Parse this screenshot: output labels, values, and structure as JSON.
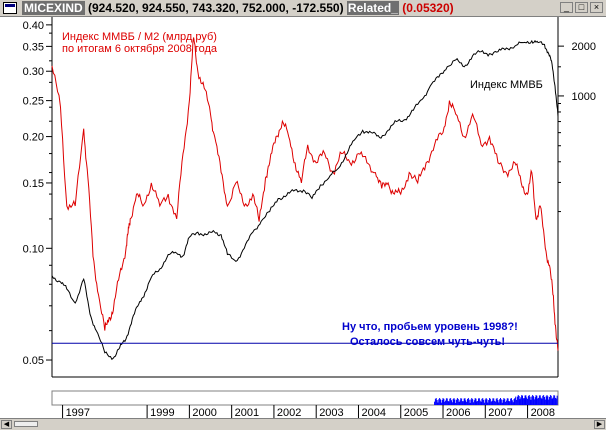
{
  "window": {
    "symbol": "MICEXIND",
    "ohlc": "(924.520, 924.550, 743.320, 752.000, -172.550)",
    "related_label": "Related_",
    "related_value": "(0.05320)"
  },
  "colors": {
    "ratio": "#dd0000",
    "index": "#000000",
    "annotation": "#0000cc",
    "support": "#0000aa",
    "volume": "#0000ff"
  },
  "chart_data": {
    "type": "line",
    "xlabel": "",
    "ylabel": "",
    "x_range": [
      1996.75,
      2008.72
    ],
    "x_tick_labels": [
      "1997",
      "1999",
      "2000",
      "2001",
      "2002",
      "2003",
      "2004",
      "2005",
      "2006",
      "2007",
      "2008"
    ],
    "left_axis": {
      "scale": "log",
      "range": [
        0.045,
        0.42
      ],
      "tick_labels": [
        "0.40",
        "0.35",
        "0.30",
        "0.25",
        "0.20",
        "0.15",
        "0.10",
        "0.05"
      ]
    },
    "right_axis": {
      "scale": "log",
      "range": [
        20,
        3000
      ],
      "tick_labels": [
        "2000",
        "1000"
      ]
    },
    "support_level": 0.0555,
    "series": [
      {
        "name": "Индекс ММВБ / М2 (млрд.руб)",
        "axis": "left",
        "x": [
          1996.75,
          1996.95,
          1997.1,
          1997.3,
          1997.5,
          1997.6,
          1997.72,
          1997.85,
          1998.0,
          1998.1,
          1998.2,
          1998.35,
          1998.5,
          1998.55,
          1998.6,
          1998.75,
          1998.9,
          1999.1,
          1999.3,
          1999.5,
          1999.7,
          1999.85,
          2000.0,
          2000.1,
          2000.2,
          2000.35,
          2000.5,
          2000.6,
          2000.75,
          2000.9,
          2001.1,
          2001.3,
          2001.5,
          2001.65,
          2001.8,
          2001.9,
          2002.05,
          2002.2,
          2002.35,
          2002.5,
          2002.65,
          2002.8,
          2003.0,
          2003.2,
          2003.4,
          2003.6,
          2003.8,
          2004.0,
          2004.2,
          2004.4,
          2004.55,
          2004.7,
          2004.85,
          2005.0,
          2005.2,
          2005.4,
          2005.6,
          2005.8,
          2006.0,
          2006.15,
          2006.3,
          2006.5,
          2006.7,
          2006.9,
          2007.1,
          2007.3,
          2007.5,
          2007.7,
          2007.85,
          2008.0,
          2008.1,
          2008.2,
          2008.3,
          2008.42,
          2008.52,
          2008.6,
          2008.66,
          2008.72
        ],
        "y": [
          0.31,
          0.24,
          0.13,
          0.13,
          0.21,
          0.155,
          0.095,
          0.075,
          0.06,
          0.065,
          0.068,
          0.085,
          0.1,
          0.11,
          0.12,
          0.14,
          0.13,
          0.15,
          0.13,
          0.14,
          0.12,
          0.18,
          0.25,
          0.37,
          0.3,
          0.27,
          0.23,
          0.2,
          0.16,
          0.13,
          0.15,
          0.13,
          0.14,
          0.118,
          0.155,
          0.17,
          0.2,
          0.22,
          0.2,
          0.17,
          0.15,
          0.19,
          0.17,
          0.18,
          0.16,
          0.18,
          0.17,
          0.18,
          0.17,
          0.16,
          0.145,
          0.15,
          0.14,
          0.14,
          0.16,
          0.15,
          0.17,
          0.19,
          0.205,
          0.25,
          0.23,
          0.2,
          0.23,
          0.19,
          0.2,
          0.17,
          0.16,
          0.17,
          0.15,
          0.14,
          0.16,
          0.12,
          0.13,
          0.1,
          0.09,
          0.075,
          0.062,
          0.053
        ]
      },
      {
        "name": "Индекс ММВБ",
        "axis": "right",
        "x": [
          1996.75,
          1996.95,
          1997.1,
          1997.3,
          1997.5,
          1997.65,
          1997.8,
          1998.0,
          1998.2,
          1998.35,
          1998.5,
          1998.65,
          1998.8,
          1998.95,
          1999.1,
          1999.3,
          1999.5,
          1999.7,
          1999.85,
          2000.0,
          2000.2,
          2000.4,
          2000.6,
          2000.75,
          2000.9,
          2001.1,
          2001.3,
          2001.5,
          2001.7,
          2001.9,
          2002.1,
          2002.3,
          2002.5,
          2002.7,
          2002.9,
          2003.1,
          2003.3,
          2003.5,
          2003.7,
          2003.9,
          2004.1,
          2004.3,
          2004.5,
          2004.7,
          2004.9,
          2005.1,
          2005.3,
          2005.5,
          2005.7,
          2005.9,
          2006.1,
          2006.3,
          2006.5,
          2006.7,
          2006.9,
          2007.1,
          2007.3,
          2007.5,
          2007.7,
          2007.9,
          2008.1,
          2008.25,
          2008.4,
          2008.5,
          2008.58,
          2008.65,
          2008.72
        ],
        "y": [
          82,
          75,
          68,
          56,
          78,
          48,
          38,
          28,
          26,
          30,
          34,
          45,
          55,
          65,
          80,
          90,
          110,
          112,
          108,
          140,
          150,
          145,
          150,
          145,
          110,
          100,
          120,
          150,
          175,
          200,
          240,
          250,
          270,
          270,
          240,
          290,
          320,
          360,
          440,
          540,
          620,
          600,
          560,
          620,
          700,
          720,
          820,
          950,
          1150,
          1300,
          1500,
          1650,
          1500,
          1750,
          1850,
          1800,
          1850,
          1950,
          2000,
          2100,
          2150,
          2100,
          2050,
          1800,
          1550,
          1150,
          750
        ]
      }
    ],
    "annotations": [
      "Индекс ММВБ / М2 (млрд.руб)",
      "по итогам 6 октября 2008 года",
      "Индекс ММВБ",
      "Ну что, пробьем уровень 1998?!",
      "Осталось совсем чуть-чуть!"
    ]
  }
}
